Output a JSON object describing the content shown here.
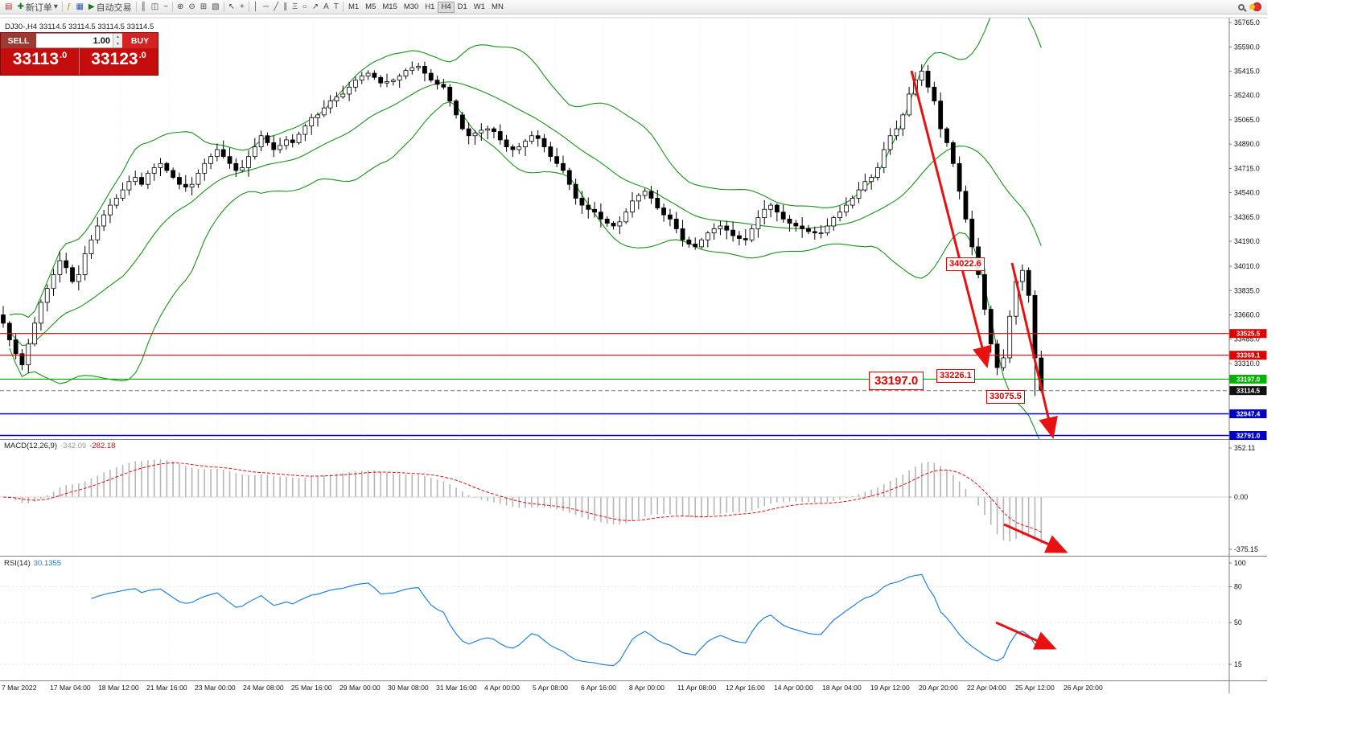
{
  "toolbar": {
    "new_order_label": "新订单",
    "auto_trading_label": "自动交易",
    "timeframes": [
      "M1",
      "M5",
      "M15",
      "M30",
      "H1",
      "H4",
      "D1",
      "W1",
      "MN"
    ],
    "active_timeframe": "H4",
    "icons": {
      "market_watch": "▤",
      "plus": "✚",
      "caret": "▾",
      "function": "ƒ",
      "depth": "▦",
      "play": "▶",
      "bar_chart": "║",
      "candle_chart": "◫",
      "line_chart": "~",
      "zoom_in": "⊕",
      "zoom_out": "⊖",
      "tile": "⊞",
      "profile": "▧",
      "cursor": "↖",
      "crosshair": "+",
      "vline": "│",
      "hline": "─",
      "trendline": "╱",
      "channel": "∥",
      "fibonacci": "Ξ",
      "ellipse": "○",
      "arrow_tool": "↗",
      "text_a": "A",
      "text_t": "T"
    }
  },
  "trade_panel": {
    "sell_label": "SELL",
    "buy_label": "BUY",
    "volume": "1.00",
    "spin_up": "▴",
    "spin_down": "▾",
    "sell_big": "33113",
    "sell_sup": ".0",
    "buy_big": "33123",
    "buy_sup": ".0"
  },
  "chart": {
    "title": "DJ30-,H4  33114.5 33114.5 33114.5 33114.5"
  },
  "indicators": {
    "macd_name": "MACD(12,26,9)",
    "macd_value": "-342.09",
    "macd_signal": "-282.18",
    "rsi_name": "RSI(14)",
    "rsi_value": "30.1355"
  },
  "annotations": {
    "peak_price": "34022.6",
    "level_price": "33197.0",
    "swing_low1": "33226.1",
    "swing_low2": "33075.5"
  },
  "chart_data": {
    "type": "candlestick",
    "symbol": "DJ30-",
    "timeframe": "H4",
    "price_range": {
      "top": 35800,
      "bottom": 32765
    },
    "closes": [
      33600,
      33480,
      33380,
      33300,
      33450,
      33600,
      33750,
      33850,
      33950,
      34050,
      34000,
      33900,
      33950,
      34100,
      34200,
      34300,
      34380,
      34450,
      34500,
      34560,
      34620,
      34650,
      34600,
      34680,
      34720,
      34750,
      34700,
      34650,
      34600,
      34580,
      34600,
      34680,
      34750,
      34800,
      34850,
      34800,
      34750,
      34700,
      34720,
      34800,
      34870,
      34950,
      34900,
      34850,
      34880,
      34920,
      34900,
      34960,
      35020,
      35080,
      35100,
      35150,
      35200,
      35230,
      35250,
      35300,
      35350,
      35380,
      35400,
      35370,
      35330,
      35340,
      35350,
      35380,
      35420,
      35440,
      35450,
      35400,
      35350,
      35320,
      35300,
      35200,
      35100,
      35000,
      34950,
      34970,
      34990,
      35000,
      34980,
      34920,
      34870,
      34850,
      34870,
      34910,
      34950,
      34930,
      34870,
      34800,
      34750,
      34700,
      34600,
      34500,
      34450,
      34420,
      34400,
      34350,
      34320,
      34300,
      34330,
      34400,
      34480,
      34520,
      34550,
      34500,
      34430,
      34380,
      34350,
      34280,
      34200,
      34170,
      34150,
      34200,
      34250,
      34280,
      34300,
      34270,
      34230,
      34210,
      34200,
      34280,
      34360,
      34420,
      34450,
      34400,
      34350,
      34320,
      34300,
      34280,
      34260,
      34250,
      34250,
      34300,
      34360,
      34400,
      34450,
      34500,
      34560,
      34620,
      34650,
      34720,
      34850,
      34950,
      35000,
      35100,
      35250,
      35350,
      35415,
      35300,
      35200,
      35000,
      34900,
      34750,
      34550,
      34350,
      34150,
      33950,
      33700,
      33450,
      33280,
      33350,
      33650,
      33900,
      33980,
      33800,
      33350,
      33114.5
    ],
    "wick_high": {
      "146": 35465,
      "162": 34022.6
    },
    "wick_low": {
      "158": 33226.1,
      "164": 33075.5,
      "165": 33100
    },
    "bollinger": {
      "period": 20,
      "deviation": 2
    },
    "macd": {
      "fast": 12,
      "slow": 26,
      "signal": 9
    },
    "rsi": {
      "period": 14
    },
    "y_ticks": [
      35765.0,
      35590.0,
      35415.0,
      35240.0,
      35065.0,
      34890.0,
      34715.0,
      34540.0,
      34365.0,
      34190.0,
      34010.0,
      33835.0,
      33660.0,
      33485.0,
      33310.0
    ],
    "macd_ticks": [
      "352.11",
      "0.00",
      "-375.15"
    ],
    "rsi_ticks": [
      "100",
      "80",
      "50",
      "15"
    ],
    "levels": [
      {
        "price": 33525.5,
        "label": "33525.5",
        "color": "#e00000",
        "type": "line"
      },
      {
        "price": 33369.1,
        "label": "33369.1",
        "color": "#e00000",
        "type": "line"
      },
      {
        "price": 33197.0,
        "label": "33197.0",
        "color": "#00b200",
        "type": "line"
      },
      {
        "price": 33114.5,
        "label": "33114.5",
        "color": "#111111",
        "type": "current"
      },
      {
        "price": 32947.4,
        "label": "32947.4",
        "color": "#0000c8",
        "type": "line"
      },
      {
        "price": 32791.0,
        "label": "32791.0",
        "color": "#0000c8",
        "type": "line"
      }
    ],
    "x_labels": [
      "7 Mar 2022",
      "17 Mar 04:00",
      "18 Mar 12:00",
      "21 Mar 16:00",
      "23 Mar 00:00",
      "24 Mar 08:00",
      "25 Mar 16:00",
      "29 Mar 00:00",
      "30 Mar 08:00",
      "31 Mar 16:00",
      "4 Apr 00:00",
      "5 Apr 08:00",
      "6 Apr 16:00",
      "8 Apr 00:00",
      "11 Apr 08:00",
      "12 Apr 16:00",
      "14 Apr 00:00",
      "18 Apr 04:00",
      "19 Apr 12:00",
      "20 Apr 20:00",
      "22 Apr 04:00",
      "25 Apr 12:00",
      "26 Apr 20:00"
    ],
    "trend_arrows": [
      [
        1133,
        88,
        1226,
        452
      ],
      [
        1258,
        327,
        1308,
        540
      ],
      [
        1248,
        652,
        1322,
        685
      ],
      [
        1238,
        774,
        1308,
        805
      ]
    ],
    "colors": {
      "band": "#149414",
      "bear": "#000000",
      "bull": "#ffffff",
      "macd_hist": "#b6b6b6",
      "macd_signal": "#e01010",
      "rsi_line": "#2080e0",
      "arrow": "#e81010"
    }
  }
}
